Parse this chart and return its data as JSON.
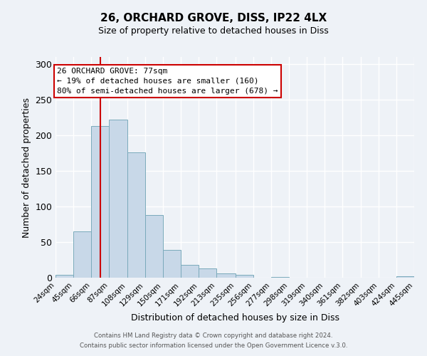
{
  "title": "26, ORCHARD GROVE, DISS, IP22 4LX",
  "subtitle": "Size of property relative to detached houses in Diss",
  "xlabel": "Distribution of detached houses by size in Diss",
  "ylabel": "Number of detached properties",
  "bin_edges": [
    24,
    45,
    66,
    87,
    108,
    129,
    150,
    171,
    192,
    213,
    235,
    256,
    277,
    298,
    319,
    340,
    361,
    382,
    403,
    424,
    445
  ],
  "bar_heights": [
    4,
    65,
    213,
    222,
    176,
    88,
    39,
    18,
    13,
    6,
    4,
    0,
    1,
    0,
    0,
    0,
    0,
    0,
    0,
    2
  ],
  "bar_color": "#c8d8e8",
  "bar_edgecolor": "#7aaabb",
  "ylim": [
    0,
    310
  ],
  "yticks": [
    0,
    50,
    100,
    150,
    200,
    250,
    300
  ],
  "red_line_x": 77,
  "annotation_title": "26 ORCHARD GROVE: 77sqm",
  "annotation_line1": "← 19% of detached houses are smaller (160)",
  "annotation_line2": "80% of semi-detached houses are larger (678) →",
  "annotation_box_color": "#ffffff",
  "annotation_box_edgecolor": "#cc0000",
  "footer1": "Contains HM Land Registry data © Crown copyright and database right 2024.",
  "footer2": "Contains public sector information licensed under the Open Government Licence v.3.0.",
  "background_color": "#eef2f7",
  "grid_color": "#ffffff"
}
